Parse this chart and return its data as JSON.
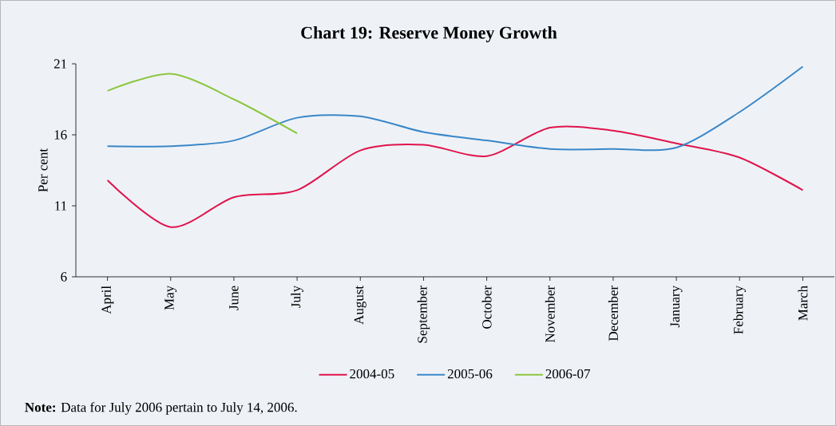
{
  "chart_data": {
    "type": "line",
    "title": "Chart 19: Reserve Money Growth",
    "ylabel": "Per cent",
    "categories": [
      "April",
      "May",
      "June",
      "July",
      "August",
      "September",
      "October",
      "November",
      "December",
      "January",
      "February",
      "March"
    ],
    "series": [
      {
        "name": "2004-05",
        "color": "#e0144c",
        "values": [
          12.8,
          9.5,
          11.6,
          12.1,
          14.9,
          15.3,
          14.5,
          16.5,
          16.3,
          15.4,
          14.4,
          12.1
        ]
      },
      {
        "name": "2005-06",
        "color": "#3a87c8",
        "values": [
          15.2,
          15.2,
          15.6,
          17.2,
          17.3,
          16.2,
          15.6,
          15.0,
          15.0,
          15.1,
          17.6,
          20.8
        ]
      },
      {
        "name": "2006-07",
        "color": "#8cc63f",
        "values": [
          19.1,
          20.3,
          18.5,
          16.1,
          null,
          null,
          null,
          null,
          null,
          null,
          null,
          null
        ]
      }
    ],
    "ylim": [
      6,
      21
    ],
    "yticks": [
      6,
      11,
      16,
      21
    ],
    "grid": false,
    "legend": "bottom",
    "marker": "none",
    "line_style": "solid",
    "annotations": [
      "**Note:** Data for July 2006 pertain to July 14, 2006."
    ]
  }
}
